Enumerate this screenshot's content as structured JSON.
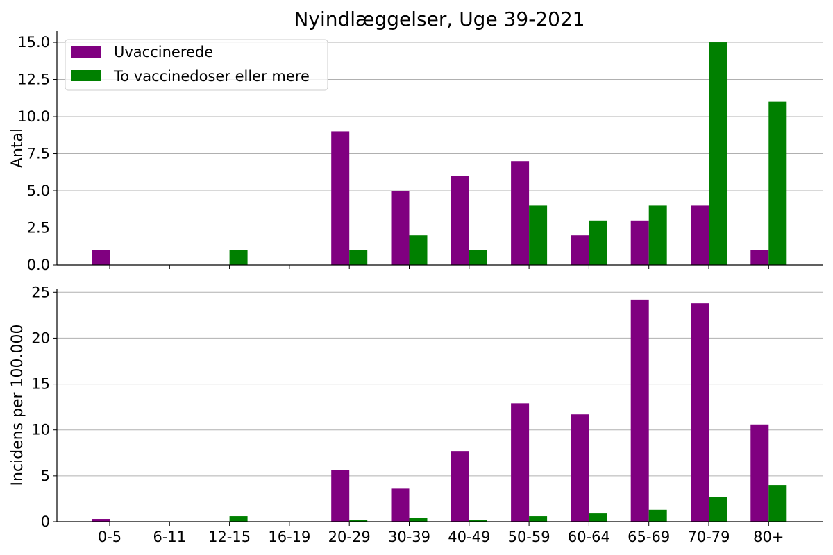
{
  "title": "Nyindlæggelser, Uge 39-2021",
  "colors": {
    "unvaccinated": "#800080",
    "vaccinated": "#008000",
    "grid": "#b0b0b0"
  },
  "legend": {
    "placement": "top-left",
    "entries": [
      "Uvaccinerede",
      "To vaccinedoser eller mere"
    ]
  },
  "chart_data": [
    {
      "type": "bar",
      "title": "Nyindlæggelser, Uge 39-2021",
      "ylabel": "Antal",
      "xlabel": "",
      "ylim": [
        0,
        15.75
      ],
      "yticks": [
        "0.0",
        "2.5",
        "5.0",
        "7.5",
        "10.0",
        "12.5",
        "15.0"
      ],
      "grid": "y",
      "categories": [
        "0-5",
        "6-11",
        "12-15",
        "16-19",
        "20-29",
        "30-39",
        "40-49",
        "50-59",
        "60-64",
        "65-69",
        "70-79",
        "80+"
      ],
      "series": [
        {
          "name": "Uvaccinerede",
          "values": [
            1,
            0,
            0,
            0,
            9,
            5,
            6,
            7,
            2,
            3,
            4,
            1
          ]
        },
        {
          "name": "To vaccinedoser eller mere",
          "values": [
            0,
            0,
            1,
            0,
            1,
            2,
            1,
            4,
            3,
            4,
            15,
            11
          ]
        }
      ]
    },
    {
      "type": "bar",
      "ylabel": "Incidens per 100.000",
      "xlabel": "",
      "ylim": [
        0,
        25.4
      ],
      "yticks": [
        "0",
        "5",
        "10",
        "15",
        "20",
        "25"
      ],
      "grid": "y",
      "categories": [
        "0-5",
        "6-11",
        "12-15",
        "16-19",
        "20-29",
        "30-39",
        "40-49",
        "50-59",
        "60-64",
        "65-69",
        "70-79",
        "80+"
      ],
      "series": [
        {
          "name": "Uvaccinerede",
          "values": [
            0.3,
            0,
            0,
            0,
            5.6,
            3.6,
            7.7,
            12.9,
            11.7,
            24.2,
            23.8,
            10.6
          ]
        },
        {
          "name": "To vaccinedoser eller mere",
          "values": [
            0,
            0,
            0.6,
            0,
            0.15,
            0.4,
            0.15,
            0.6,
            0.9,
            1.3,
            2.7,
            4.0
          ]
        }
      ]
    }
  ]
}
